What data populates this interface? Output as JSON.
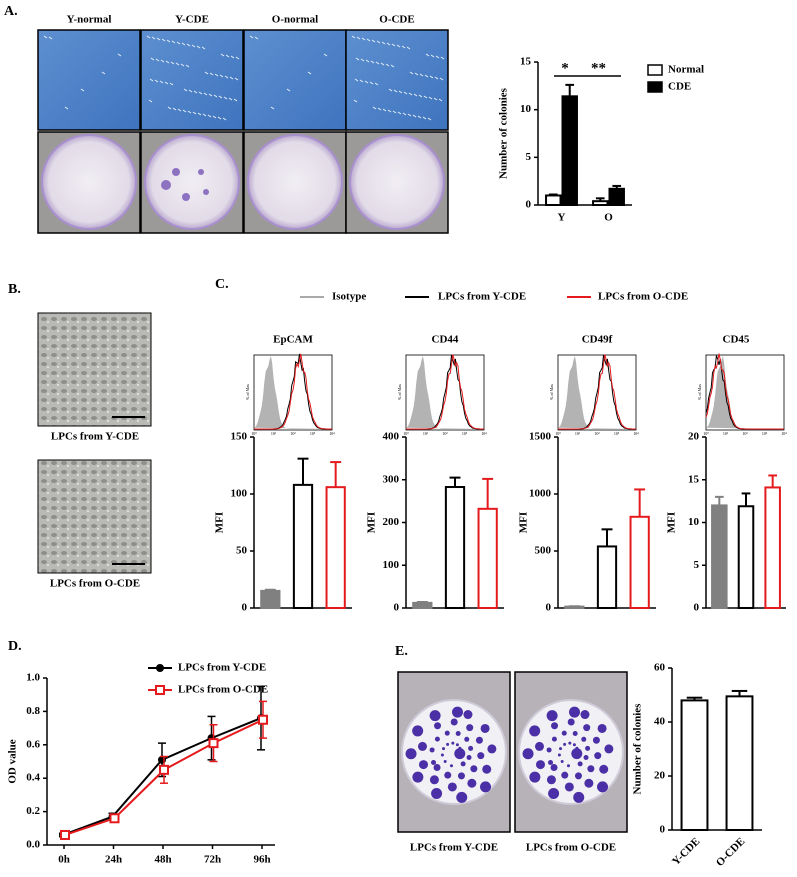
{
  "panel_labels": [
    "A.",
    "B.",
    "C.",
    "D.",
    "E."
  ],
  "culture_labels": [
    "Y-normal",
    "Y-CDE",
    "O-normal",
    "O-CDE"
  ],
  "morphology_captions": [
    "LPCs from Y-CDE",
    "LPCs from O-CDE"
  ],
  "colony_captions": [
    "LPCs from Y-CDE",
    "LPCs from O-CDE"
  ],
  "flow_legend": [
    {
      "name": "Isotype",
      "color": "#aaaaaa"
    },
    {
      "name": "LPCs from Y-CDE",
      "color": "#000000"
    },
    {
      "name": "LPCs from O-CDE",
      "color": "#e41a1c"
    }
  ],
  "histogram_axis": {
    "ylabel": "% of Max",
    "xticks": [
      "10⁰",
      "10¹",
      "10²",
      "10³",
      "10⁴"
    ]
  },
  "chart_data": [
    {
      "type": "bar",
      "ylabel": "Number of colonies",
      "categories": [
        "Y",
        "O"
      ],
      "series": [
        {
          "name": "Normal",
          "color": "#000000",
          "filled": false,
          "values": [
            1,
            0.4
          ],
          "errors": [
            0.1,
            0.3
          ]
        },
        {
          "name": "CDE",
          "color": "#000000",
          "filled": true,
          "values": [
            11.4,
            1.7
          ],
          "errors": [
            1.2,
            0.3
          ]
        }
      ],
      "annotations": [
        "*",
        "**"
      ],
      "ylim": [
        0,
        15
      ],
      "yticks": [
        0,
        5,
        10,
        15
      ]
    },
    {
      "type": "bar",
      "title": "EpCAM",
      "ylabel": "MFI",
      "categories": [
        null,
        null,
        null
      ],
      "values": [
        15,
        108,
        106
      ],
      "errors": [
        1,
        23,
        22
      ],
      "colors": [
        "#808080",
        "#000000",
        "#e41a1c"
      ],
      "filled": [
        true,
        false,
        false
      ],
      "ylim": [
        0,
        150
      ],
      "yticks": [
        0,
        50,
        100,
        150
      ]
    },
    {
      "type": "bar",
      "title": "CD44",
      "ylabel": "MFI",
      "categories": [
        null,
        null,
        null
      ],
      "values": [
        12,
        283,
        232
      ],
      "errors": [
        2,
        22,
        70
      ],
      "colors": [
        "#808080",
        "#000000",
        "#e41a1c"
      ],
      "filled": [
        true,
        false,
        false
      ],
      "ylim": [
        0,
        400
      ],
      "yticks": [
        0,
        100,
        200,
        300,
        400
      ]
    },
    {
      "type": "bar",
      "title": "CD49f",
      "ylabel": "MFI",
      "categories": [
        null,
        null,
        null
      ],
      "values": [
        12,
        540,
        800
      ],
      "errors": [
        3,
        150,
        240
      ],
      "colors": [
        "#808080",
        "#000000",
        "#e41a1c"
      ],
      "filled": [
        true,
        false,
        false
      ],
      "ylim": [
        0,
        1500
      ],
      "yticks": [
        0,
        500,
        1000,
        1500
      ]
    },
    {
      "type": "bar",
      "title": "CD45",
      "ylabel": "MFI",
      "categories": [
        null,
        null,
        null
      ],
      "values": [
        12,
        11.9,
        14.1
      ],
      "errors": [
        1,
        1.5,
        1.4
      ],
      "colors": [
        "#808080",
        "#000000",
        "#e41a1c"
      ],
      "filled": [
        true,
        false,
        false
      ],
      "ylim": [
        0,
        20
      ],
      "yticks": [
        0,
        5,
        10,
        15,
        20
      ]
    },
    {
      "type": "line",
      "ylabel": "OD value",
      "categories": [
        "0h",
        "24h",
        "48h",
        "72h",
        "96h"
      ],
      "series": [
        {
          "name": "LPCs from Y-CDE",
          "color": "#000000",
          "marker": "circle",
          "values": [
            0.06,
            0.17,
            0.51,
            0.64,
            0.76
          ],
          "errors": [
            0.01,
            0.02,
            0.1,
            0.13,
            0.19
          ]
        },
        {
          "name": "LPCs from O-CDE",
          "color": "#e41a1c",
          "marker": "square",
          "values": [
            0.06,
            0.16,
            0.45,
            0.61,
            0.75
          ],
          "errors": [
            0.01,
            0.02,
            0.08,
            0.11,
            0.11
          ]
        }
      ],
      "ylim": [
        0,
        1
      ],
      "yticks": [
        {
          "value": 0,
          "label": "0.0"
        },
        0.2,
        0.4,
        0.6,
        0.8,
        {
          "value": 1,
          "label": "1.0"
        }
      ]
    },
    {
      "type": "bar",
      "ylabel": "Number of colonies",
      "categories": [
        "Y-CDE",
        "O-CDE"
      ],
      "values": [
        48,
        49.5
      ],
      "errors": [
        1,
        2
      ],
      "colors": [
        "#000000",
        "#000000"
      ],
      "filled": [
        false,
        false
      ],
      "ylim": [
        0,
        60
      ],
      "yticks": [
        0,
        20,
        40,
        60
      ]
    }
  ]
}
